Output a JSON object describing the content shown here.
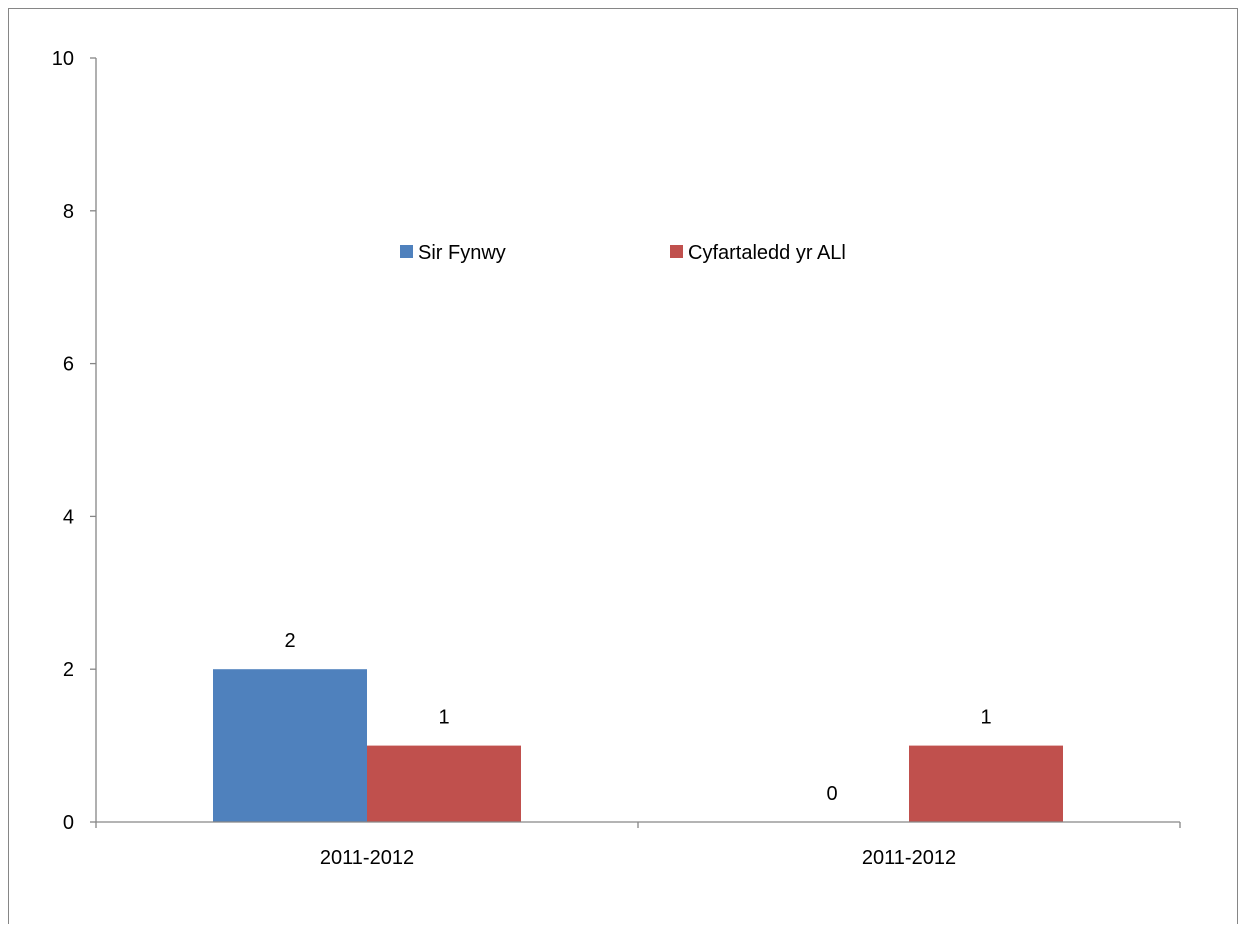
{
  "chart_data": {
    "type": "bar",
    "categories": [
      "2011-2012",
      "2011-2012"
    ],
    "series": [
      {
        "name": "Sir Fynwy",
        "values": [
          2,
          0
        ],
        "color": "#4F81BD"
      },
      {
        "name": "Cyfartaledd yr ALl",
        "values": [
          1,
          1
        ],
        "color": "#C0504D"
      }
    ],
    "ylim": [
      0,
      10
    ],
    "yticks": [
      "0",
      "2",
      "4",
      "6",
      "8",
      "10"
    ],
    "data_labels": [
      [
        "2",
        "0"
      ],
      [
        "1",
        "1"
      ]
    ],
    "legend_position": "center",
    "grid": false
  }
}
